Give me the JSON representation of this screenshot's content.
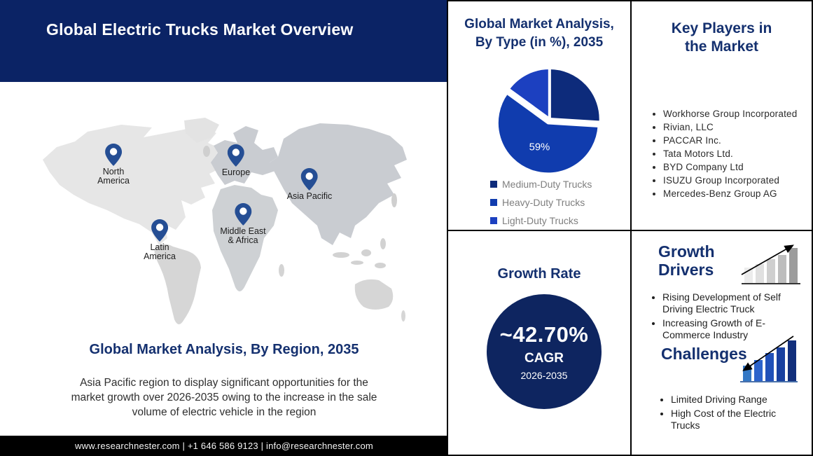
{
  "colors": {
    "header_bg": "#0B2365",
    "circle_bg": "#0E2560",
    "heading_navy": "#14306F",
    "pin_blue": "#254E94",
    "footer_bg": "#000000",
    "legend_text_gray": "#7F7F7F",
    "pie_medium_duty": "#0D2B7B",
    "pie_heavy_duty": "#103CAE",
    "pie_light_duty": "#1C40C0"
  },
  "header": {
    "title": "Global Electric Trucks Market Overview"
  },
  "map": {
    "heading": "Global Market Analysis, By Region, 2035",
    "description": "Asia Pacific region to display significant opportunities for the market growth over 2026-2035 owing to the increase in the sale volume of electric vehicle in the region",
    "regions": [
      {
        "name": "North America",
        "line1": "North",
        "line2": "America"
      },
      {
        "name": "Europe",
        "line1": "Europe",
        "line2": ""
      },
      {
        "name": "Asia Pacific",
        "line1": "Asia Pacific",
        "line2": ""
      },
      {
        "name": "Middle East & Africa",
        "line1": "Middle East",
        "line2": "& Africa"
      },
      {
        "name": "Latin America",
        "line1": "Latin",
        "line2": "America"
      }
    ]
  },
  "chart_data": {
    "type": "pie",
    "title": "Global Market Analysis, By Type (in %), 2035",
    "title_lines": [
      "Global Market Analysis,",
      "By Type (in %), 2035"
    ],
    "slices": [
      {
        "label": "Medium-Duty Trucks",
        "value": 26,
        "color": "#0D2B7B",
        "estimated": true
      },
      {
        "label": "Heavy-Duty Trucks",
        "value": 59,
        "color": "#103CAE",
        "data_label": "59%",
        "exploded": true
      },
      {
        "label": "Light-Duty Trucks",
        "value": 15,
        "color": "#1C40C0",
        "estimated": true
      }
    ],
    "legend_position": "bottom-left",
    "start_angle_deg": 0
  },
  "growth_rate": {
    "heading": "Growth Rate",
    "value": "~42.70%",
    "metric": "CAGR",
    "period": "2026-2035"
  },
  "key_players": {
    "heading_line1": "Key Players in",
    "heading_line2": "the Market",
    "items": [
      "Workhorse Group Incorporated",
      "Rivian, LLC",
      "PACCAR Inc.",
      "Tata Motors Ltd.",
      "BYD Company Ltd",
      "ISUZU Group Incorporated",
      "Mercedes-Benz Group AG"
    ]
  },
  "growth_drivers": {
    "heading_line1": "Growth",
    "heading_line2": "Drivers",
    "items": [
      "Rising Development of Self Driving Electric Truck",
      "Increasing Growth of E-Commerce Industry"
    ]
  },
  "challenges": {
    "heading": "Challenges",
    "items": [
      "Limited Driving Range",
      "High Cost of the Electric Trucks"
    ]
  },
  "footer": {
    "contact": "www.researchnester.com  | +1 646 586 9123 | info@researchnester.com"
  }
}
